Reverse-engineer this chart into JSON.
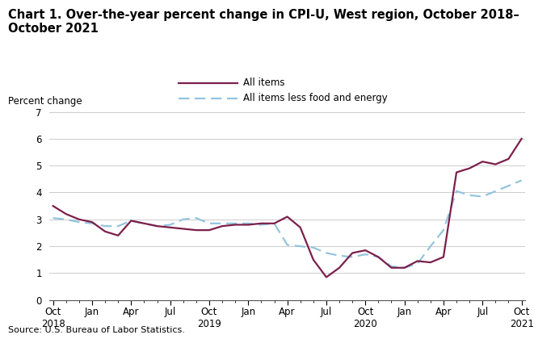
{
  "title_line1": "Chart 1. Over-the-year percent change in CPI-U, West region, October 2018–",
  "title_line2": "October 2021",
  "ylabel": "Percent change",
  "source": "Source: U.S. Bureau of Labor Statistics.",
  "ylim": [
    0.0,
    7.0
  ],
  "legend_labels": [
    "All items",
    "All items less food and energy"
  ],
  "all_items_color": "#7B1F4B",
  "core_color": "#92C5DE",
  "tick_labels": [
    "Oct\n2018",
    "Jan",
    "Apr",
    "Jul",
    "Oct\n2019",
    "Jan",
    "Apr",
    "Jul",
    "Oct\n2020",
    "Jan",
    "Apr",
    "Jul",
    "Oct\n2021"
  ],
  "tick_positions": [
    0,
    3,
    6,
    9,
    12,
    15,
    18,
    21,
    24,
    27,
    30,
    33,
    36
  ],
  "all_items_y": [
    3.5,
    3.2,
    3.0,
    2.9,
    2.55,
    2.4,
    2.95,
    2.85,
    2.75,
    2.7,
    2.65,
    2.6,
    2.6,
    2.75,
    2.8,
    2.8,
    2.85,
    2.85,
    3.1,
    2.7,
    1.5,
    0.85,
    1.2,
    1.75,
    1.85,
    1.6,
    1.2,
    1.2,
    1.45,
    1.4,
    1.6,
    4.75,
    4.9,
    5.15,
    5.05,
    5.25,
    6.0
  ],
  "core_y": [
    3.05,
    3.0,
    2.9,
    2.85,
    2.75,
    2.75,
    2.95,
    2.85,
    2.75,
    2.8,
    3.0,
    3.05,
    2.85,
    2.85,
    2.85,
    2.85,
    2.8,
    2.85,
    2.05,
    2.0,
    1.95,
    1.75,
    1.65,
    1.6,
    1.7,
    1.6,
    1.25,
    1.2,
    1.35,
    2.0,
    2.6,
    4.05,
    3.9,
    3.85,
    4.05,
    4.25,
    4.45
  ],
  "background_color": "#ffffff",
  "grid_color": "#cccccc",
  "title_fontsize": 10.5,
  "axis_fontsize": 8.5,
  "source_fontsize": 8.0,
  "ylabel_fontsize": 8.5
}
